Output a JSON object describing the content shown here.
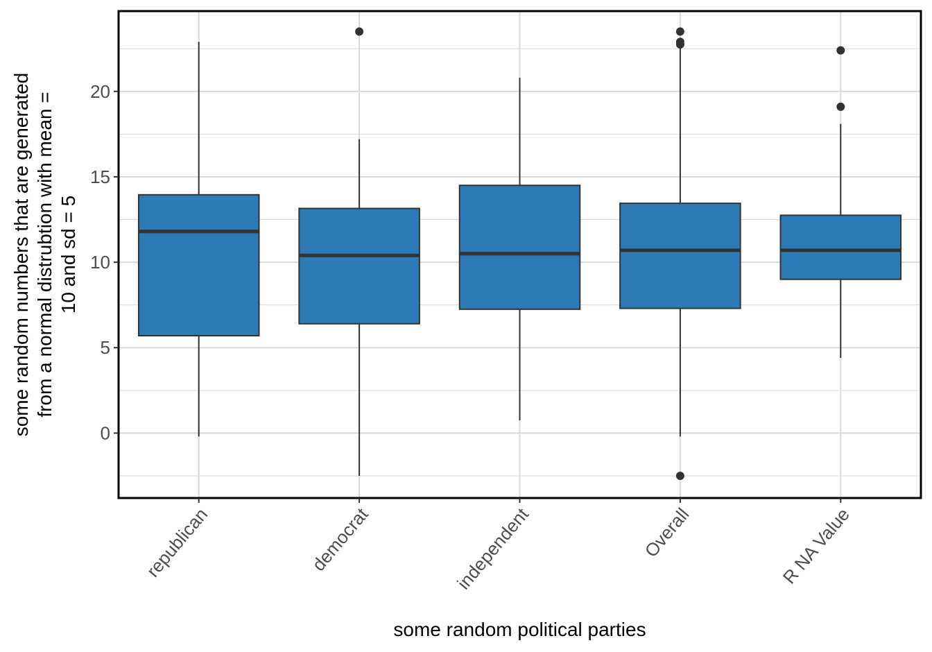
{
  "chart_data": {
    "type": "boxplot",
    "title": "",
    "xlabel": "some random political parties",
    "ylabel_lines": [
      "some random numbers that are generated",
      "from a normal distrubtion with mean =",
      "10 and sd = 5"
    ],
    "categories": [
      "republican",
      "democrat",
      "independent",
      "Overall",
      "R NA Value"
    ],
    "ylim": [
      -3.8,
      24.7
    ],
    "y_ticks": [
      0,
      5,
      10,
      15,
      20
    ],
    "y_tick_labels": [
      "0",
      "5",
      "10",
      "15",
      "20"
    ],
    "grid": true,
    "legend": "none",
    "boxes": [
      {
        "category": "republican",
        "whisker_low": -0.2,
        "q1": 5.7,
        "median": 11.8,
        "q3": 13.95,
        "whisker_high": 22.9,
        "outliers": []
      },
      {
        "category": "democrat",
        "whisker_low": -2.5,
        "q1": 6.4,
        "median": 10.4,
        "q3": 13.15,
        "whisker_high": 17.2,
        "outliers": [
          23.5
        ]
      },
      {
        "category": "independent",
        "whisker_low": 0.75,
        "q1": 7.25,
        "median": 10.5,
        "q3": 14.5,
        "whisker_high": 20.8,
        "outliers": []
      },
      {
        "category": "Overall",
        "whisker_low": -0.2,
        "q1": 7.3,
        "median": 10.7,
        "q3": 13.45,
        "whisker_high": 22.6,
        "outliers": [
          -2.5,
          22.75,
          22.9,
          23.5
        ]
      },
      {
        "category": "R NA Value",
        "whisker_low": 4.4,
        "q1": 9.0,
        "median": 10.7,
        "q3": 12.75,
        "whisker_high": 18.1,
        "outliers": [
          19.1,
          22.4
        ]
      }
    ],
    "colors": {
      "box_fill": "#2c7bb6",
      "outline": "#333333",
      "grid": "#d9d9d9",
      "panel_border": "#000000"
    }
  }
}
